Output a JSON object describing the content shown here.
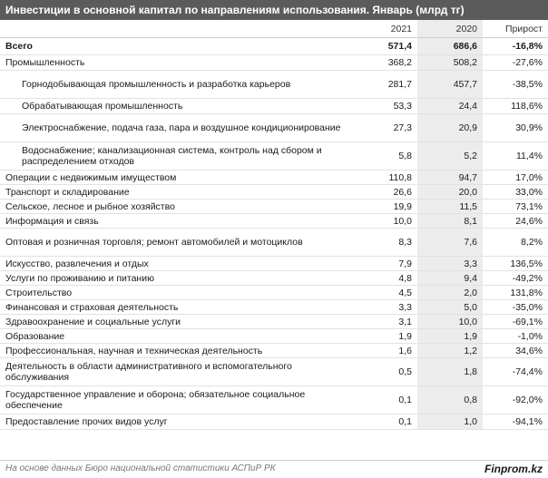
{
  "title": "Инвестиции в основной капитал по направлениям использования. Январь (млрд тг)",
  "columns": {
    "label": "",
    "y2021": "2021",
    "y2020": "2020",
    "growth": "Прирост"
  },
  "rows": [
    {
      "label": "Всего",
      "y2021": "571,4",
      "y2020": "686,6",
      "growth": "-16,8%"
    },
    {
      "label": "Промышленность",
      "y2021": "368,2",
      "y2020": "508,2",
      "growth": "-27,6%"
    },
    {
      "label": "Горнодобывающая промышленность и разработка карьеров",
      "y2021": "281,7",
      "y2020": "457,7",
      "growth": "-38,5%"
    },
    {
      "label": "Обрабатывающая промышленность",
      "y2021": "53,3",
      "y2020": "24,4",
      "growth": "118,6%"
    },
    {
      "label": "Электроснабжение, подача газа, пара и воздушное кондиционирование",
      "y2021": "27,3",
      "y2020": "20,9",
      "growth": "30,9%"
    },
    {
      "label": "Водоснабжение; канализационная система, контроль над сбором и распределением отходов",
      "y2021": "5,8",
      "y2020": "5,2",
      "growth": "11,4%"
    },
    {
      "label": "Операции с недвижимым имуществом",
      "y2021": "110,8",
      "y2020": "94,7",
      "growth": "17,0%"
    },
    {
      "label": "Транспорт и складирование",
      "y2021": "26,6",
      "y2020": "20,0",
      "growth": "33,0%"
    },
    {
      "label": "Сельское, лесное и рыбное хозяйство",
      "y2021": "19,9",
      "y2020": "11,5",
      "growth": "73,1%"
    },
    {
      "label": "Информация и связь",
      "y2021": "10,0",
      "y2020": "8,1",
      "growth": "24,6%"
    },
    {
      "label": "Оптовая и розничная торговля; ремонт автомобилей и мотоциклов",
      "y2021": "8,3",
      "y2020": "7,6",
      "growth": "8,2%"
    },
    {
      "label": "Искусство, развлечения и отдых",
      "y2021": "7,9",
      "y2020": "3,3",
      "growth": "136,5%"
    },
    {
      "label": "Услуги по проживанию и питанию",
      "y2021": "4,8",
      "y2020": "9,4",
      "growth": "-49,2%"
    },
    {
      "label": "Строительство",
      "y2021": "4,5",
      "y2020": "2,0",
      "growth": "131,8%"
    },
    {
      "label": "Финансовая и страховая деятельность",
      "y2021": "3,3",
      "y2020": "5,0",
      "growth": "-35,0%"
    },
    {
      "label": "Здравоохранение и социальные услуги",
      "y2021": "3,1",
      "y2020": "10,0",
      "growth": "-69,1%"
    },
    {
      "label": "Образование",
      "y2021": "1,9",
      "y2020": "1,9",
      "growth": "-1,0%"
    },
    {
      "label": "Профессиональная, научная и техническая деятельность",
      "y2021": "1,6",
      "y2020": "1,2",
      "growth": "34,6%"
    },
    {
      "label": "Деятельность в области административного и вспомогательного обслуживания",
      "y2021": "0,5",
      "y2020": "1,8",
      "growth": "-74,4%"
    },
    {
      "label": "Государственное управление и оборона; обязательное социальное обеспечение",
      "y2021": "0,1",
      "y2020": "0,8",
      "growth": "-92,0%"
    },
    {
      "label": "Предоставление прочих видов услуг",
      "y2021": "0,1",
      "y2020": "1,0",
      "growth": "-94,1%"
    }
  ],
  "footer": {
    "source": "На основе данных Бюро национальной статистики АСПиР РК",
    "brand": "Finprom.kz"
  },
  "colors": {
    "title_bg": "#5b5b5b",
    "shade": "#ececec"
  }
}
